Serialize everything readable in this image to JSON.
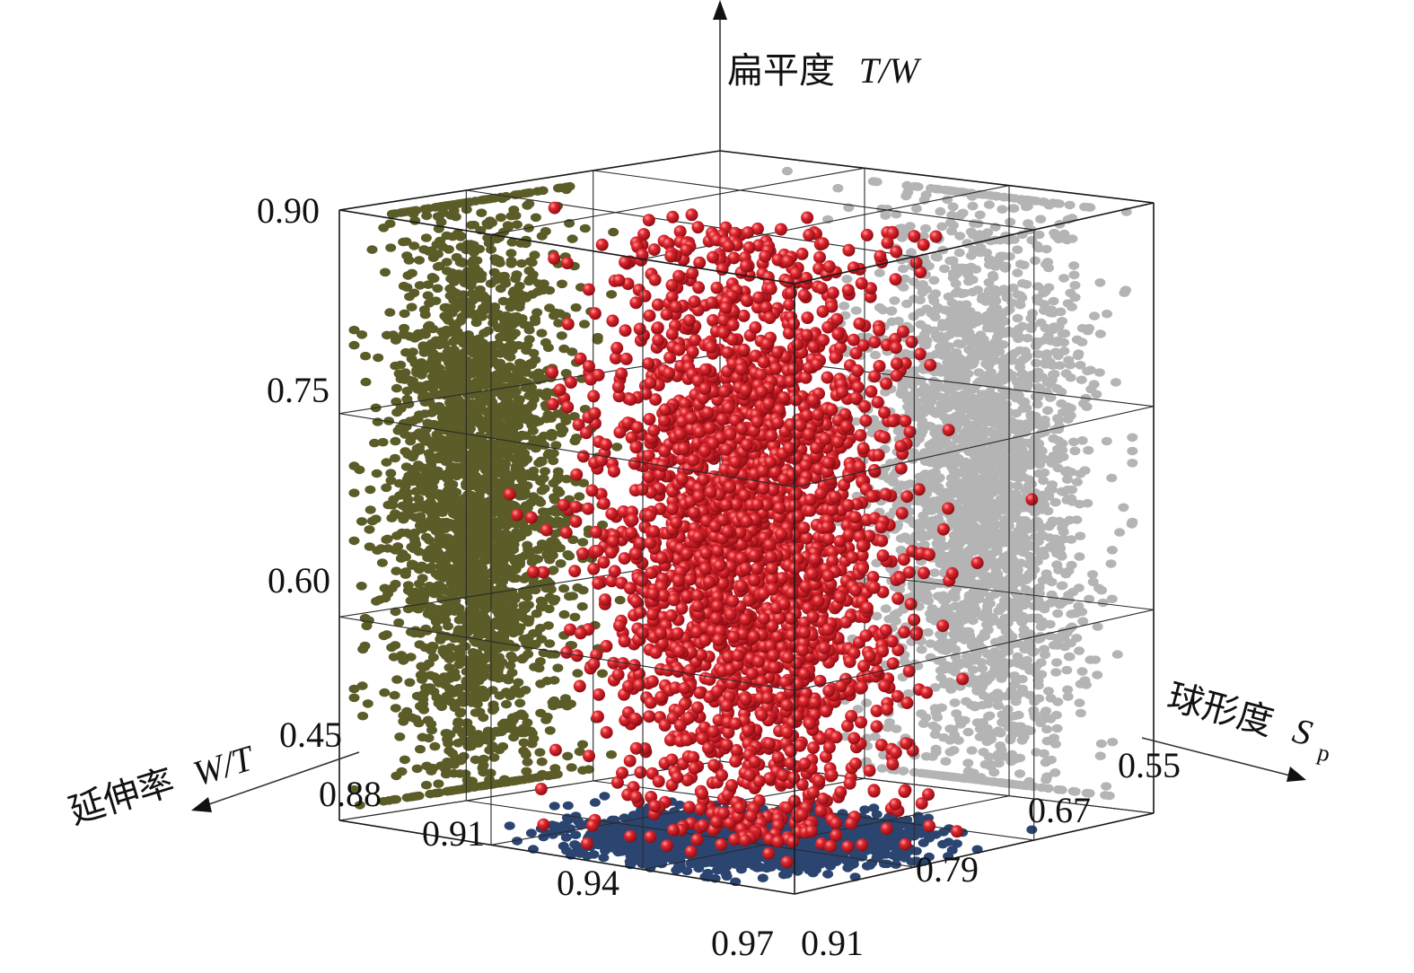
{
  "chart_data": {
    "type": "scatter",
    "dimensions": "3d",
    "axes": {
      "vertical": {
        "label_prefix": "扁平度",
        "label_var": "T/W",
        "ticks": [
          "0.90",
          "0.75",
          "0.60",
          "0.45"
        ],
        "range": [
          0.45,
          0.9
        ]
      },
      "elongation": {
        "label_prefix": "延伸率",
        "label_var": "W/T",
        "ticks": [
          "0.88",
          "0.91",
          "0.94",
          "0.97"
        ],
        "range": [
          0.88,
          0.97
        ]
      },
      "sphericity": {
        "label_prefix": "球形度",
        "label_var": "S",
        "label_sub": "p",
        "ticks": [
          "0.55",
          "0.67",
          "0.79",
          "0.91"
        ],
        "range": [
          0.55,
          0.91
        ]
      }
    },
    "series": [
      {
        "role": "data points",
        "marker": "sphere",
        "color": "#d8242c",
        "count_estimate": 7000
      },
      {
        "role": "projection onto elongation-flatness wall",
        "color": "#5b5c28"
      },
      {
        "role": "projection onto sphericity-flatness wall",
        "color": "#b4b4b4"
      },
      {
        "role": "projection onto floor",
        "color": "#2b4570"
      }
    ],
    "distribution": {
      "elongation": {
        "mean": 0.935,
        "sd": 0.012
      },
      "sphericity": {
        "mean": 0.78,
        "sd": 0.045
      },
      "flatness": {
        "mean": 0.67,
        "sd": 0.1
      }
    },
    "grid": true,
    "legend": "none"
  }
}
